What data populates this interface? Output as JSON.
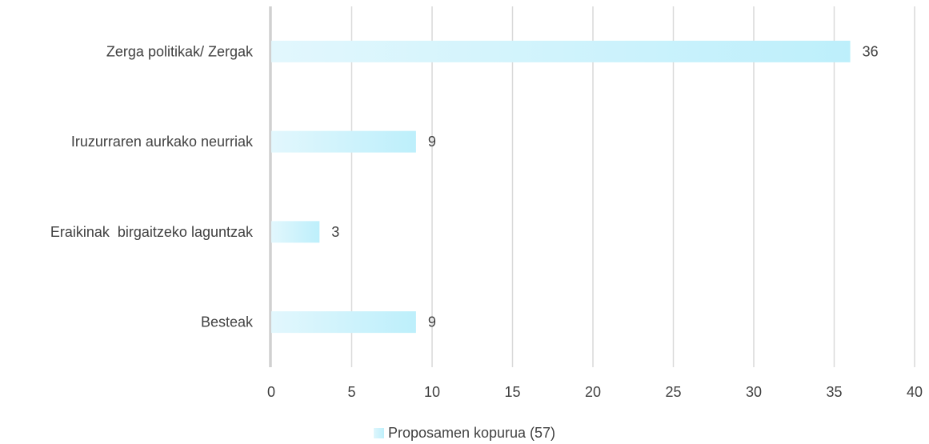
{
  "chart_data": {
    "type": "bar",
    "orientation": "horizontal",
    "categories": [
      "Zerga politikak/ Zergak",
      "Iruzurraren aurkako neurriak",
      "Eraikinak  birgaitzeko laguntzak",
      "Besteak"
    ],
    "series": [
      {
        "name": "Proposamen kopurua (57)",
        "values": [
          36,
          9,
          3,
          9
        ]
      }
    ],
    "data_labels": [
      "36",
      "9",
      "3",
      "9"
    ],
    "xlim": [
      0,
      40
    ],
    "x_ticks": [
      "0",
      "5",
      "10",
      "15",
      "20",
      "25",
      "30",
      "35",
      "40"
    ],
    "grid": "vertical",
    "legend": "bottom-center",
    "colors": {
      "bar_start": "#e2f7fd",
      "bar_end": "#bdeffb",
      "grid": "#d9d9d9",
      "axis": "#d0d0d0",
      "text": "#404040"
    }
  }
}
